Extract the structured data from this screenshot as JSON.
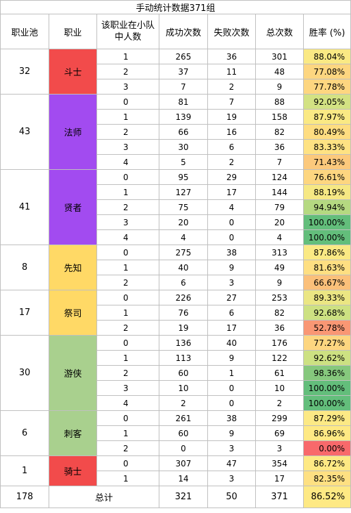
{
  "title": "手动统计数据371组",
  "headers": {
    "pool": "职业池",
    "job": "职业",
    "count_in_team": "该职业在小队中人数",
    "success": "成功次数",
    "fail": "失败次数",
    "total": "总次数",
    "rate": "胜率 (%)"
  },
  "colors": {
    "warrior": "#f24b4b",
    "mage": "#a24bf0",
    "prophet": "#ffd966",
    "ranger": "#a9d08e",
    "rate_green": "#63be7b",
    "rate_yellow": "#ffeb84",
    "rate_orange": "#fdd27f",
    "rate_red": "#f8696b"
  },
  "groups": [
    {
      "pool": "32",
      "job": "斗士",
      "color": "#f24b4b",
      "rows": [
        {
          "count": "1",
          "success": "265",
          "fail": "36",
          "total": "301",
          "rate": "88.04%",
          "rate_color": "#fae984"
        },
        {
          "count": "2",
          "success": "37",
          "fail": "11",
          "total": "48",
          "rate": "77.08%",
          "rate_color": "#fdd680"
        },
        {
          "count": "3",
          "success": "7",
          "fail": "2",
          "total": "9",
          "rate": "77.78%",
          "rate_color": "#fdd680"
        }
      ]
    },
    {
      "pool": "43",
      "job": "法师",
      "color": "#a24bf0",
      "rows": [
        {
          "count": "0",
          "success": "81",
          "fail": "7",
          "total": "88",
          "rate": "92.05%",
          "rate_color": "#d3e283"
        },
        {
          "count": "1",
          "success": "139",
          "fail": "19",
          "total": "158",
          "rate": "87.97%",
          "rate_color": "#fae984"
        },
        {
          "count": "2",
          "success": "66",
          "fail": "16",
          "total": "82",
          "rate": "80.49%",
          "rate_color": "#fedd81"
        },
        {
          "count": "3",
          "success": "30",
          "fail": "6",
          "total": "36",
          "rate": "83.33%",
          "rate_color": "#fee283"
        },
        {
          "count": "4",
          "success": "5",
          "fail": "2",
          "total": "7",
          "rate": "71.43%",
          "rate_color": "#fcc97c"
        }
      ]
    },
    {
      "pool": "41",
      "job": "贤者",
      "color": "#a24bf0",
      "rows": [
        {
          "count": "0",
          "success": "95",
          "fail": "29",
          "total": "124",
          "rate": "76.61%",
          "rate_color": "#fdd680"
        },
        {
          "count": "1",
          "success": "127",
          "fail": "17",
          "total": "144",
          "rate": "88.19%",
          "rate_color": "#f6e884"
        },
        {
          "count": "2",
          "success": "75",
          "fail": "4",
          "total": "79",
          "rate": "94.94%",
          "rate_color": "#b5d981"
        },
        {
          "count": "3",
          "success": "20",
          "fail": "0",
          "total": "20",
          "rate": "100.00%",
          "rate_color": "#63be7b"
        },
        {
          "count": "4",
          "success": "4",
          "fail": "0",
          "total": "4",
          "rate": "100.00%",
          "rate_color": "#63be7b"
        }
      ]
    },
    {
      "pool": "8",
      "job": "先知",
      "color": "#ffd966",
      "rows": [
        {
          "count": "0",
          "success": "275",
          "fail": "38",
          "total": "313",
          "rate": "87.86%",
          "rate_color": "#fae984"
        },
        {
          "count": "1",
          "success": "40",
          "fail": "9",
          "total": "49",
          "rate": "81.63%",
          "rate_color": "#fedf82"
        },
        {
          "count": "2",
          "success": "6",
          "fail": "3",
          "total": "9",
          "rate": "66.67%",
          "rate_color": "#fbc07a"
        }
      ]
    },
    {
      "pool": "17",
      "job": "祭司",
      "color": "#ffd966",
      "rows": [
        {
          "count": "0",
          "success": "226",
          "fail": "27",
          "total": "253",
          "rate": "89.33%",
          "rate_color": "#ebe683"
        },
        {
          "count": "1",
          "success": "76",
          "fail": "6",
          "total": "82",
          "rate": "92.68%",
          "rate_color": "#cde182"
        },
        {
          "count": "2",
          "success": "19",
          "fail": "17",
          "total": "36",
          "rate": "52.78%",
          "rate_color": "#f99774"
        }
      ]
    },
    {
      "pool": "30",
      "job": "游侠",
      "color": "#a9d08e",
      "rows": [
        {
          "count": "0",
          "success": "136",
          "fail": "40",
          "total": "176",
          "rate": "77.27%",
          "rate_color": "#fdd680"
        },
        {
          "count": "1",
          "success": "113",
          "fail": "9",
          "total": "122",
          "rate": "92.62%",
          "rate_color": "#cde182"
        },
        {
          "count": "2",
          "success": "60",
          "fail": "1",
          "total": "61",
          "rate": "98.36%",
          "rate_color": "#86c87d"
        },
        {
          "count": "3",
          "success": "10",
          "fail": "0",
          "total": "10",
          "rate": "100.00%",
          "rate_color": "#63be7b"
        },
        {
          "count": "4",
          "success": "2",
          "fail": "0",
          "total": "2",
          "rate": "100.00%",
          "rate_color": "#63be7b"
        }
      ]
    },
    {
      "pool": "6",
      "job": "刺客",
      "color": "#a9d08e",
      "rows": [
        {
          "count": "0",
          "success": "261",
          "fail": "38",
          "total": "299",
          "rate": "87.29%",
          "rate_color": "#fce985"
        },
        {
          "count": "1",
          "success": "60",
          "fail": "9",
          "total": "69",
          "rate": "86.96%",
          "rate_color": "#fee984"
        },
        {
          "count": "2",
          "success": "0",
          "fail": "3",
          "total": "3",
          "rate": "0.00%",
          "rate_color": "#f8696b"
        }
      ]
    },
    {
      "pool": "1",
      "job": "骑士",
      "color": "#f24b4b",
      "rows": [
        {
          "count": "0",
          "success": "307",
          "fail": "47",
          "total": "354",
          "rate": "86.72%",
          "rate_color": "#fee984"
        },
        {
          "count": "1",
          "success": "14",
          "fail": "3",
          "total": "17",
          "rate": "82.35%",
          "rate_color": "#fee082"
        }
      ]
    }
  ],
  "total_row": {
    "pool": "178",
    "label": "总计",
    "success": "321",
    "fail": "50",
    "total": "371",
    "rate": "86.52%",
    "rate_color": "#fee984"
  }
}
